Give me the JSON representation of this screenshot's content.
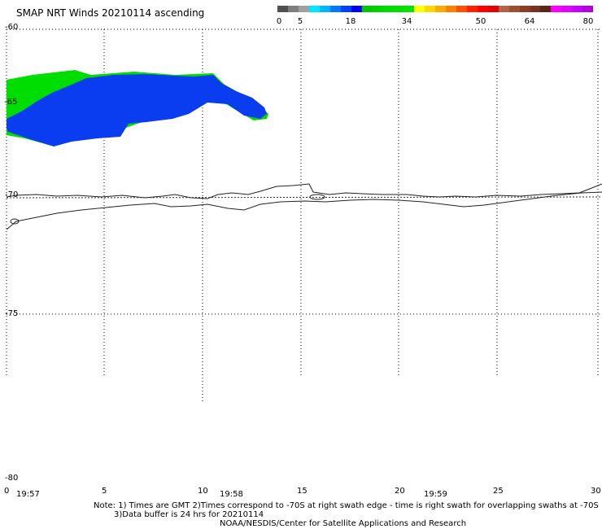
{
  "title": "SMAP NRT Winds 20210114 ascending",
  "colorbar": {
    "colors": [
      "#505050",
      "#7d7d7d",
      "#a0a0a0",
      "#00e6ff",
      "#00b4ff",
      "#0078ff",
      "#0040ff",
      "#0000ff",
      "#00c800",
      "#00d200",
      "#00dc00",
      "#00e000",
      "#00e600",
      "#ffff00",
      "#ffd700",
      "#ffaa00",
      "#ff8000",
      "#ff5000",
      "#ff2000",
      "#ff0000",
      "#e60000",
      "#b46446",
      "#a05032",
      "#8c3c28",
      "#783223",
      "#5a2814",
      "#ff00ff",
      "#e600ff",
      "#c800ff",
      "#b400dc"
    ],
    "labels": [
      "0",
      "5",
      "18",
      "34",
      "50",
      "64",
      "80"
    ]
  },
  "axes": {
    "y_labels": [
      "-60",
      "-65",
      "-70",
      "-75",
      "-80"
    ],
    "x_labels": [
      "0",
      "5",
      "10",
      "15",
      "20",
      "25",
      "30"
    ],
    "times": [
      "19:57",
      "19:58",
      "19:59"
    ]
  },
  "notes": [
    "Note: 1) Times are GMT 2)Times correspond to -70S at right swath edge - time is right swath for overlapping swaths at -70S",
    "3)Data buffer is 24 hrs for 20210114",
    "NOAA/NESDIS/Center for Satellite Applications and Research"
  ]
}
